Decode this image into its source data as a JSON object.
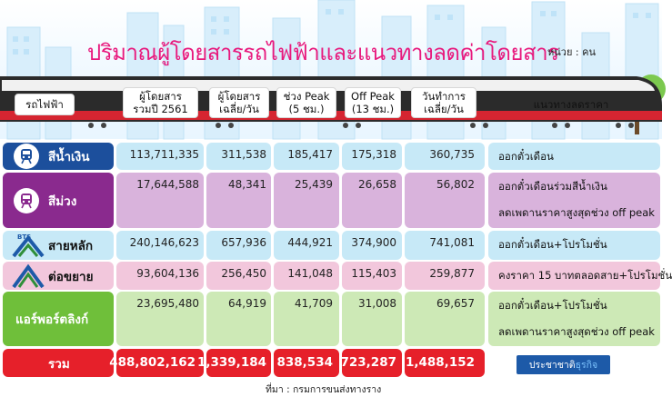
{
  "title": "ปริมาณผู้โดยสารรถไฟฟ้าและแนวทางลดค่าโดยสาร",
  "unit": "หน่วย : คน",
  "headers": {
    "train": "รถไฟฟ้า",
    "annual": [
      "ผู้โดยสาร",
      "รวมปี 2561"
    ],
    "daily": [
      "ผู้โดยสาร",
      "เฉลี่ย/วัน"
    ],
    "peak": [
      "ช่วง Peak",
      "(5 ชม.)"
    ],
    "offpeak": [
      "Off Peak",
      "(13 ชม.)"
    ],
    "workday": [
      "วันทำการ",
      "เฉลี่ย/วัน"
    ],
    "discount": "แนวทางลดราคา"
  },
  "brand": {
    "a": "ประชาชาติ",
    "b": "ธุรกิจ"
  },
  "source": "ที่มา : กรมการขนส่งทางราง",
  "colors": {
    "blue": "#1c4f9c",
    "purple": "#8a2a8e",
    "bts": "#2f8f3a",
    "ext": "#f2c7dc",
    "airport": "#6fbf3a",
    "total": "#e6202a"
  },
  "chart_data": {
    "type": "table",
    "title": "ปริมาณผู้โดยสารรถไฟฟ้าและแนวทางลดค่าโดยสาร",
    "columns": [
      "รถไฟฟ้า",
      "ผู้โดยสาร รวมปี 2561",
      "ผู้โดยสาร เฉลี่ย/วัน",
      "ช่วง Peak (5 ชม.)",
      "Off Peak (13 ชม.)",
      "วันทำการ เฉลี่ย/วัน",
      "แนวทางลดราคา"
    ],
    "rows": [
      {
        "name": "สีน้ำเงิน",
        "values": [
          "113,711,335",
          "311,538",
          "185,417",
          "175,318",
          "360,735"
        ],
        "discount": [
          "ออกตั๋วเดือน"
        ]
      },
      {
        "name": "สีม่วง",
        "values": [
          "17,644,588",
          "48,341",
          "25,439",
          "26,658",
          "56,802"
        ],
        "discount": [
          "ออกตั๋วเดือนร่วมสีน้ำเงิน",
          "ลดเพดานราคาสูงสุดช่วง off peak"
        ]
      },
      {
        "name": "สายหลัก",
        "values": [
          "240,146,623",
          "657,936",
          "444,921",
          "374,900",
          "741,081"
        ],
        "discount": [
          "ออกตั๋วเดือน+โปรโมชั่น"
        ]
      },
      {
        "name": "ต่อขยาย",
        "values": [
          "93,604,136",
          "256,450",
          "141,048",
          "115,403",
          "259,877"
        ],
        "discount": [
          "คงราคา 15 บาทตลอดสาย+โปรโมชั่น"
        ]
      },
      {
        "name": "แอร์พอร์ตลิงก์",
        "values": [
          "23,695,480",
          "64,919",
          "41,709",
          "31,008",
          "69,657"
        ],
        "discount": [
          "ออกตั๋วเดือน+โปรโมชั่น",
          "ลดเพดานราคาสูงสุดช่วง off peak"
        ]
      }
    ],
    "total": {
      "name": "รวม",
      "values": [
        "488,802,162",
        "1,339,184",
        "838,534",
        "723,287",
        "1,488,152"
      ]
    },
    "logo_text": "BTS"
  }
}
